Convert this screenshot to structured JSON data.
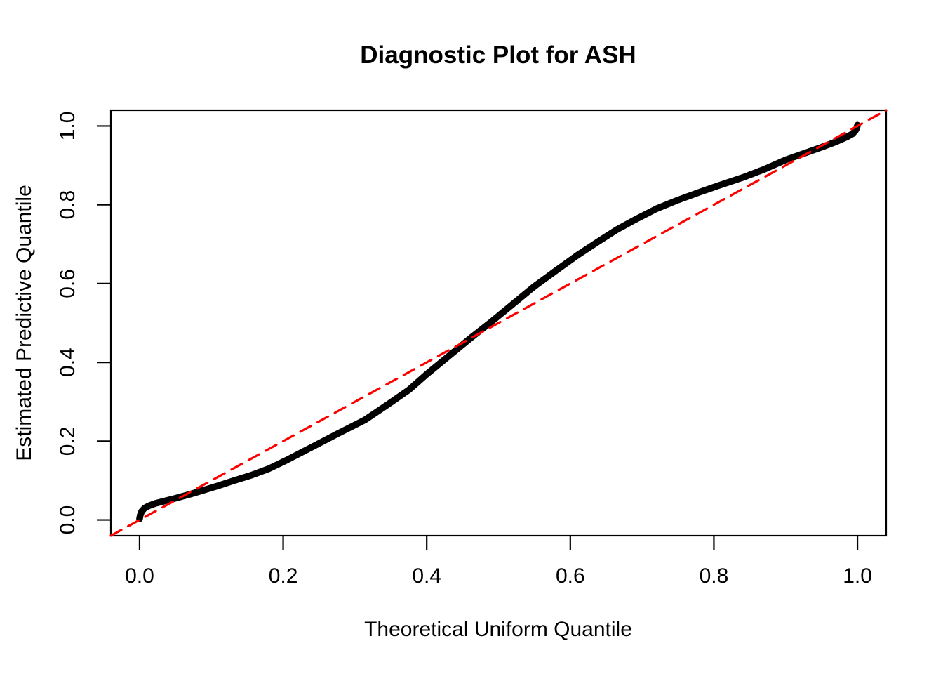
{
  "figure": {
    "title": "Diagnostic Plot for ASH",
    "xlabel": "Theoretical Uniform Quantile",
    "ylabel": "Estimated Predictive Quantile"
  },
  "colors": {
    "curve": "#000000",
    "reference_line": "#FF0000",
    "axis": "#000000",
    "background": "#FFFFFF"
  },
  "chart_data": {
    "type": "line",
    "title": "Diagnostic Plot for ASH",
    "xlabel": "Theoretical Uniform Quantile",
    "ylabel": "Estimated Predictive Quantile",
    "xlim": [
      -0.04,
      1.04
    ],
    "ylim": [
      -0.04,
      1.04
    ],
    "x_ticks": [
      "0.0",
      "0.2",
      "0.4",
      "0.6",
      "0.8",
      "1.0"
    ],
    "y_ticks": [
      "0.0",
      "0.2",
      "0.4",
      "0.6",
      "0.8",
      "1.0"
    ],
    "grid": false,
    "legend": "none",
    "series": [
      {
        "name": "estimated-vs-theoretical-quantile-curve",
        "type": "line",
        "color": "#000000",
        "line_width": 9.5,
        "dash": "solid",
        "points": [
          [
            0.0,
            0.003
          ],
          [
            0.001,
            0.012
          ],
          [
            0.003,
            0.022
          ],
          [
            0.007,
            0.03
          ],
          [
            0.013,
            0.036
          ],
          [
            0.022,
            0.042
          ],
          [
            0.035,
            0.048
          ],
          [
            0.05,
            0.055
          ],
          [
            0.07,
            0.065
          ],
          [
            0.09,
            0.076
          ],
          [
            0.11,
            0.087
          ],
          [
            0.13,
            0.099
          ],
          [
            0.155,
            0.113
          ],
          [
            0.18,
            0.13
          ],
          [
            0.205,
            0.152
          ],
          [
            0.24,
            0.185
          ],
          [
            0.275,
            0.218
          ],
          [
            0.314,
            0.254
          ],
          [
            0.345,
            0.292
          ],
          [
            0.375,
            0.33
          ],
          [
            0.4,
            0.37
          ],
          [
            0.43,
            0.415
          ],
          [
            0.46,
            0.46
          ],
          [
            0.49,
            0.503
          ],
          [
            0.52,
            0.548
          ],
          [
            0.55,
            0.593
          ],
          [
            0.58,
            0.633
          ],
          [
            0.61,
            0.672
          ],
          [
            0.64,
            0.708
          ],
          [
            0.665,
            0.737
          ],
          [
            0.69,
            0.762
          ],
          [
            0.72,
            0.79
          ],
          [
            0.75,
            0.812
          ],
          [
            0.78,
            0.832
          ],
          [
            0.81,
            0.851
          ],
          [
            0.84,
            0.869
          ],
          [
            0.87,
            0.89
          ],
          [
            0.9,
            0.914
          ],
          [
            0.925,
            0.93
          ],
          [
            0.95,
            0.946
          ],
          [
            0.97,
            0.96
          ],
          [
            0.985,
            0.972
          ],
          [
            0.993,
            0.98
          ],
          [
            0.997,
            0.988
          ],
          [
            0.999,
            0.995
          ],
          [
            1.0,
            1.002
          ]
        ]
      },
      {
        "name": "reference-diagonal-y-equals-x",
        "type": "line",
        "color": "#FF0000",
        "line_width": 3.2,
        "dash": "dashed",
        "points": [
          [
            -0.04,
            -0.04
          ],
          [
            1.04,
            1.04
          ]
        ]
      }
    ]
  }
}
